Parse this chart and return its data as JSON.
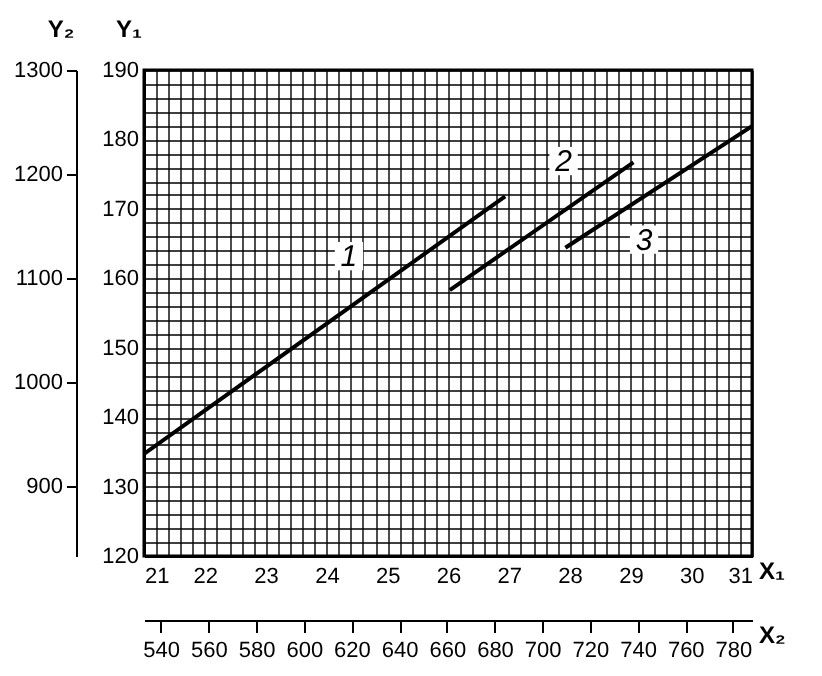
{
  "chart_data": {
    "type": "line",
    "xlabel": "X₁",
    "ylabel": "Y₁",
    "x2label": "X₂",
    "y2label": "Y₂",
    "series": [
      {
        "color": "#000000",
        "x": [
          21,
          26.94
        ],
        "values": [
          134.7,
          171.8
        ]
      },
      {
        "color": "#000000",
        "x": [
          26.03,
          29.05
        ],
        "values": [
          158.3,
          176.7
        ]
      },
      {
        "color": "#000000",
        "x": [
          27.93,
          31
        ],
        "values": [
          164.4,
          181.9
        ]
      }
    ],
    "annotations": [
      {
        "text": "1",
        "x": 24.7,
        "y": 158
      },
      {
        "text": "2",
        "x": 28.23,
        "y": 171.7
      },
      {
        "text": "3",
        "x": 28.83,
        "y": 169.6
      }
    ],
    "xlim": [
      21,
      31
    ],
    "ylim": [
      120,
      190
    ],
    "xticks": [
      21,
      {
        "value": 21.2,
        "label": null
      },
      {
        "value": 21.4,
        "label": null
      },
      {
        "value": 21.6,
        "label": null
      },
      {
        "value": 21.8,
        "label": null
      },
      22,
      {
        "value": 22.2,
        "label": null
      },
      {
        "value": 22.4,
        "label": null
      },
      {
        "value": 22.6,
        "label": null
      },
      {
        "value": 22.8,
        "label": null
      },
      23,
      {
        "value": 23.2,
        "label": null
      },
      {
        "value": 23.4,
        "label": null
      },
      {
        "value": 23.6,
        "label": null
      },
      {
        "value": 23.8,
        "label": null
      },
      24,
      {
        "value": 24.2,
        "label": null
      },
      {
        "value": 24.4,
        "label": null
      },
      {
        "value": 24.6,
        "label": null
      },
      {
        "value": 24.8,
        "label": null
      },
      25,
      {
        "value": 25.2,
        "label": null
      },
      {
        "value": 25.4,
        "label": null
      },
      {
        "value": 25.6,
        "label": null
      },
      {
        "value": 25.8,
        "label": null
      },
      26,
      {
        "value": 26.2,
        "label": null
      },
      {
        "value": 26.4,
        "label": null
      },
      {
        "value": 26.6,
        "label": null
      },
      {
        "value": 26.8,
        "label": null
      },
      27,
      {
        "value": 27.2,
        "label": null
      },
      {
        "value": 27.4,
        "label": null
      },
      {
        "value": 27.6,
        "label": null
      },
      {
        "value": 27.8,
        "label": null
      },
      28,
      {
        "value": 28.2,
        "label": null
      },
      {
        "value": 28.4,
        "label": null
      },
      {
        "value": 28.6,
        "label": null
      },
      {
        "value": 28.8,
        "label": null
      },
      29,
      {
        "value": 29.2,
        "label": null
      },
      {
        "value": 29.4,
        "label": null
      },
      {
        "value": 29.6,
        "label": null
      },
      {
        "value": 29.8,
        "label": null
      },
      30,
      {
        "value": 30.2,
        "label": null
      },
      {
        "value": 30.4,
        "label": null
      },
      {
        "value": 30.6,
        "label": null
      },
      {
        "value": 30.8,
        "label": null
      },
      31
    ],
    "yticks": [
      120,
      {
        "value": 122,
        "label": null
      },
      {
        "value": 124,
        "label": null
      },
      {
        "value": 126,
        "label": null
      },
      {
        "value": 128,
        "label": null
      },
      130,
      {
        "value": 132,
        "label": null
      },
      {
        "value": 134,
        "label": null
      },
      {
        "value": 136,
        "label": null
      },
      {
        "value": 138,
        "label": null
      },
      140,
      {
        "value": 142,
        "label": null
      },
      {
        "value": 144,
        "label": null
      },
      {
        "value": 146,
        "label": null
      },
      {
        "value": 148,
        "label": null
      },
      150,
      {
        "value": 152,
        "label": null
      },
      {
        "value": 154,
        "label": null
      },
      {
        "value": 156,
        "label": null
      },
      {
        "value": 158,
        "label": null
      },
      160,
      {
        "value": 162,
        "label": null
      },
      {
        "value": 164,
        "label": null
      },
      {
        "value": 166,
        "label": null
      },
      {
        "value": 168,
        "label": null
      },
      170,
      {
        "value": 172,
        "label": null
      },
      {
        "value": 174,
        "label": null
      },
      {
        "value": 176,
        "label": null
      },
      {
        "value": 178,
        "label": null
      },
      180,
      {
        "value": 182,
        "label": null
      },
      {
        "value": 184,
        "label": null
      },
      {
        "value": 186,
        "label": null
      },
      {
        "value": 188,
        "label": null
      },
      190
    ],
    "x2lim": [
      533,
      788
    ],
    "x2ticks": [
      540,
      560,
      580,
      600,
      620,
      640,
      660,
      680,
      700,
      720,
      740,
      760,
      780
    ],
    "y2lim": [
      833,
      1300
    ],
    "y2ticks": [
      900,
      1000,
      1100,
      1200,
      1300
    ],
    "grid": true
  }
}
